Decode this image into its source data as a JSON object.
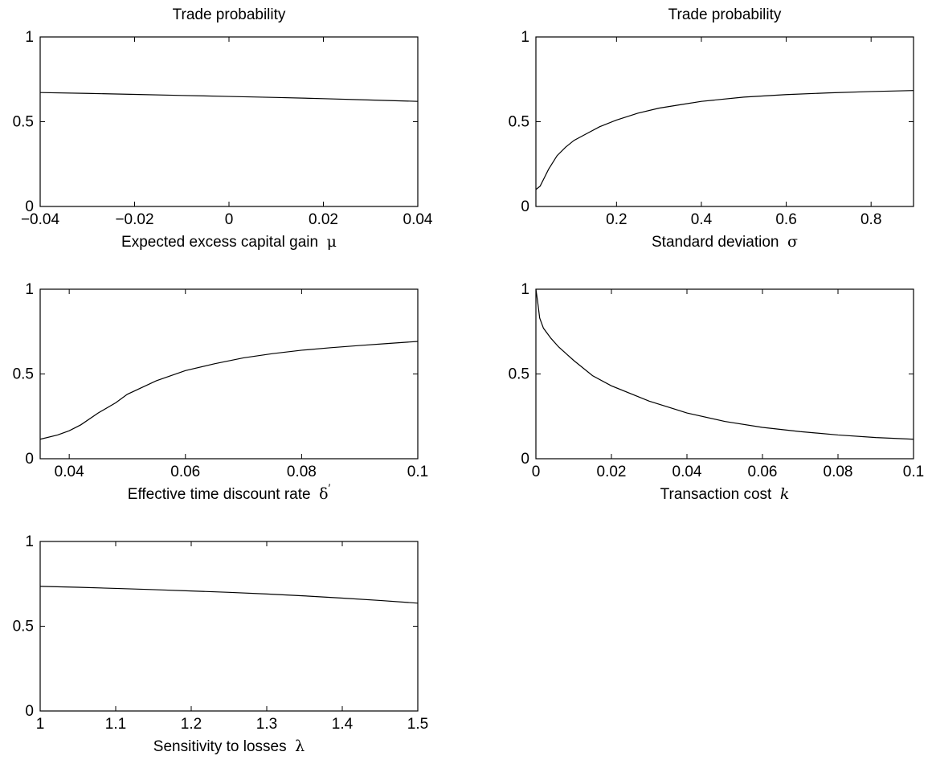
{
  "figure": {
    "background": "#ffffff",
    "line_color": "#000000"
  },
  "chart_data": [
    {
      "type": "line",
      "title": "Trade probability",
      "xlabel": "Expected excess capital gain",
      "xsymbol": "μ",
      "xsymbol_italic": false,
      "xsymbol_prime": false,
      "ylabel": "",
      "xlim": [
        -0.04,
        0.04
      ],
      "ylim": [
        0,
        1
      ],
      "xticks": [
        -0.04,
        -0.02,
        0,
        0.02,
        0.04
      ],
      "xtick_labels": [
        "−0.04",
        "−0.02",
        "0",
        "0.02",
        "0.04"
      ],
      "yticks": [
        0,
        0.5,
        1
      ],
      "ytick_labels": [
        "0",
        "0.5",
        "1"
      ],
      "grid": false,
      "series": [
        {
          "x": [
            -0.04,
            -0.03,
            -0.02,
            -0.01,
            0,
            0.01,
            0.02,
            0.03,
            0.04
          ],
          "y": [
            0.672,
            0.667,
            0.661,
            0.655,
            0.649,
            0.643,
            0.636,
            0.628,
            0.62
          ]
        }
      ]
    },
    {
      "type": "line",
      "title": "Trade probability",
      "xlabel": "Standard deviation",
      "xsymbol": "σ",
      "xsymbol_italic": false,
      "xsymbol_prime": false,
      "ylabel": "",
      "xlim": [
        0.01,
        0.9
      ],
      "ylim": [
        0,
        1
      ],
      "xticks": [
        0.2,
        0.4,
        0.6,
        0.8
      ],
      "xtick_labels": [
        "0.2",
        "0.4",
        "0.6",
        "0.8"
      ],
      "yticks": [
        0,
        0.5,
        1
      ],
      "ytick_labels": [
        "0",
        "0.5",
        "1"
      ],
      "grid": false,
      "series": [
        {
          "x": [
            0.01,
            0.02,
            0.03,
            0.04,
            0.06,
            0.08,
            0.1,
            0.13,
            0.16,
            0.2,
            0.25,
            0.3,
            0.35,
            0.4,
            0.5,
            0.6,
            0.7,
            0.8,
            0.9
          ],
          "y": [
            0.1,
            0.12,
            0.17,
            0.22,
            0.3,
            0.35,
            0.39,
            0.43,
            0.47,
            0.51,
            0.55,
            0.58,
            0.6,
            0.62,
            0.645,
            0.66,
            0.67,
            0.678,
            0.684
          ]
        }
      ]
    },
    {
      "type": "line",
      "title": "",
      "xlabel": "Effective time discount rate",
      "xsymbol": "δ",
      "xsymbol_italic": false,
      "xsymbol_prime": true,
      "ylabel": "",
      "xlim": [
        0.035,
        0.1
      ],
      "ylim": [
        0,
        1
      ],
      "xticks": [
        0.04,
        0.06,
        0.08,
        0.1
      ],
      "xtick_labels": [
        "0.04",
        "0.06",
        "0.08",
        "0.1"
      ],
      "yticks": [
        0,
        0.5,
        1
      ],
      "ytick_labels": [
        "0",
        "0.5",
        "1"
      ],
      "grid": false,
      "series": [
        {
          "x": [
            0.035,
            0.038,
            0.04,
            0.042,
            0.045,
            0.048,
            0.05,
            0.055,
            0.06,
            0.065,
            0.07,
            0.075,
            0.08,
            0.085,
            0.09,
            0.095,
            0.1
          ],
          "y": [
            0.115,
            0.14,
            0.165,
            0.2,
            0.27,
            0.33,
            0.38,
            0.46,
            0.52,
            0.56,
            0.595,
            0.62,
            0.64,
            0.655,
            0.668,
            0.68,
            0.692
          ]
        }
      ]
    },
    {
      "type": "line",
      "title": "",
      "xlabel": "Transaction cost",
      "xsymbol": "k",
      "xsymbol_italic": true,
      "xsymbol_prime": false,
      "ylabel": "",
      "xlim": [
        0,
        0.1
      ],
      "ylim": [
        0,
        1
      ],
      "xticks": [
        0,
        0.02,
        0.04,
        0.06,
        0.08,
        0.1
      ],
      "xtick_labels": [
        "0",
        "0.02",
        "0.04",
        "0.06",
        "0.08",
        "0.1"
      ],
      "yticks": [
        0,
        0.5,
        1
      ],
      "ytick_labels": [
        "0",
        "0.5",
        "1"
      ],
      "grid": false,
      "series": [
        {
          "x": [
            0,
            0.0005,
            0.001,
            0.002,
            0.004,
            0.006,
            0.008,
            0.01,
            0.015,
            0.02,
            0.03,
            0.04,
            0.05,
            0.06,
            0.07,
            0.08,
            0.09,
            0.1
          ],
          "y": [
            1.0,
            0.92,
            0.83,
            0.77,
            0.71,
            0.66,
            0.62,
            0.58,
            0.49,
            0.43,
            0.34,
            0.27,
            0.22,
            0.185,
            0.16,
            0.14,
            0.125,
            0.115
          ]
        }
      ]
    },
    {
      "type": "line",
      "title": "",
      "xlabel": "Sensitivity to losses",
      "xsymbol": "λ",
      "xsymbol_italic": false,
      "xsymbol_prime": false,
      "ylabel": "",
      "xlim": [
        1,
        1.5
      ],
      "ylim": [
        0,
        1
      ],
      "xticks": [
        1,
        1.1,
        1.2,
        1.3,
        1.4,
        1.5
      ],
      "xtick_labels": [
        "1",
        "1.1",
        "1.2",
        "1.3",
        "1.4",
        "1.5"
      ],
      "yticks": [
        0,
        0.5,
        1
      ],
      "ytick_labels": [
        "0",
        "0.5",
        "1"
      ],
      "grid": false,
      "series": [
        {
          "x": [
            1,
            1.05,
            1.1,
            1.15,
            1.2,
            1.25,
            1.3,
            1.35,
            1.4,
            1.45,
            1.5
          ],
          "y": [
            0.735,
            0.73,
            0.723,
            0.716,
            0.708,
            0.7,
            0.69,
            0.679,
            0.666,
            0.652,
            0.636
          ]
        }
      ]
    }
  ]
}
